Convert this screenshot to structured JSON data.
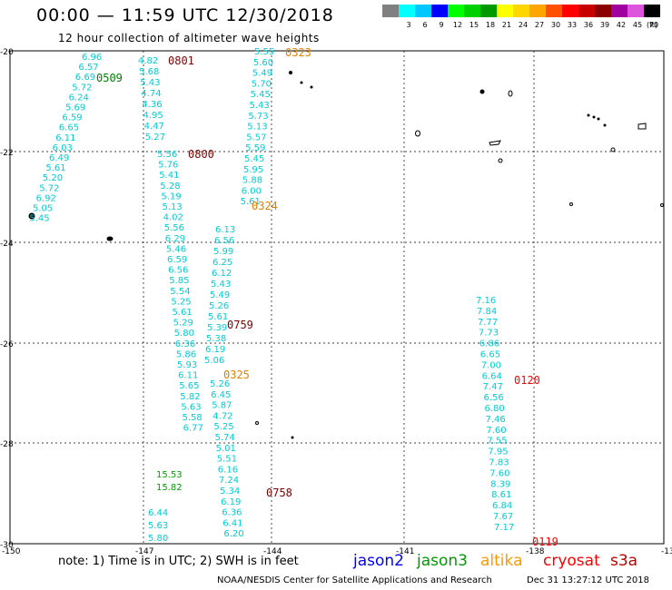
{
  "header": {
    "title": "00:00 — 11:59 UTC 12/30/2018",
    "subtitle": "12 hour collection of altimeter wave heights"
  },
  "color_scale": {
    "unit": "(ft)",
    "bins": [
      {
        "label": "",
        "color": "#808080"
      },
      {
        "label": "3",
        "color": "#00ffff"
      },
      {
        "label": "6",
        "color": "#00c8ff"
      },
      {
        "label": "9",
        "color": "#0000ff"
      },
      {
        "label": "12",
        "color": "#00ff00"
      },
      {
        "label": "15",
        "color": "#00d000"
      },
      {
        "label": "18",
        "color": "#009a00"
      },
      {
        "label": "21",
        "color": "#ffff00"
      },
      {
        "label": "24",
        "color": "#ffd700"
      },
      {
        "label": "27",
        "color": "#ffa500"
      },
      {
        "label": "30",
        "color": "#ff5000"
      },
      {
        "label": "33",
        "color": "#ff0000"
      },
      {
        "label": "36",
        "color": "#c80000"
      },
      {
        "label": "39",
        "color": "#8b0000"
      },
      {
        "label": "42",
        "color": "#a000a0"
      },
      {
        "label": "45",
        "color": "#dd55dd"
      },
      {
        "label": "70",
        "color": "#000000"
      }
    ]
  },
  "map": {
    "lat_labels": [
      "-20",
      "-22",
      "-24",
      "-26",
      "-28",
      "-30"
    ],
    "lon_labels": [
      "-150",
      "-147",
      "-144",
      "-141",
      "-138",
      "-13"
    ],
    "tracks": [
      {
        "name": "track-0509",
        "color": "#00cdd8",
        "label": "0509",
        "label_color": "#008000",
        "values": [
          "6.96",
          "6.57",
          "6.69",
          "5.72",
          "6.24",
          "5.69",
          "6.59",
          "6.65",
          "6.11",
          "6.03",
          "6.49",
          "5.61",
          "5.20",
          "5.72",
          "6.92",
          "5.05",
          "5.45"
        ]
      },
      {
        "name": "track-0801",
        "color": "#00cdd8",
        "label": "0801",
        "label_color": "#800000",
        "values": [
          "4.82",
          "5.68",
          "5.43",
          "4.74",
          "4.36",
          "4.95",
          "4.47",
          "5.27"
        ]
      },
      {
        "name": "track-0800",
        "color": "#00cdd8",
        "label": "0800",
        "label_color": "#800000",
        "values": [
          "5.56",
          "5.76",
          "5.41",
          "5.28",
          "5.19",
          "5.13",
          "4.02",
          "5.56",
          "6.29",
          "5.46",
          "6.59",
          "6.56",
          "5.85",
          "5.54",
          "5.25",
          "5.61",
          "5.29",
          "5.80",
          "6.36",
          "5.86",
          "5.93",
          "6.11",
          "5.65",
          "5.82",
          "5.63",
          "5.58",
          "6.77"
        ]
      },
      {
        "name": "track-0759",
        "color": "#00cdd8",
        "label": "0759",
        "label_color": "#800000",
        "values": [
          "6.13",
          "6.56",
          "5.99",
          "6.25",
          "6.12",
          "5.43",
          "5.49",
          "5.26",
          "5.61",
          "5.39",
          "5.38",
          "6.19",
          "5.06"
        ]
      },
      {
        "name": "track-0323",
        "color": "#00cdd8",
        "label": "0323",
        "label_color": "#e08000",
        "values": [
          "5.55",
          "5.60",
          "5.49",
          "5.70",
          "5.45",
          "5.43",
          "5.73",
          "5.13",
          "5.57",
          "5.59",
          "5.45",
          "5.95",
          "5.88",
          "6.00",
          "5.61"
        ]
      },
      {
        "name": "track-0324",
        "color": "#00cdd8",
        "label": "0324",
        "label_color": "#e08000",
        "values": []
      },
      {
        "name": "track-0325",
        "color": "#00cdd8",
        "label": "0325",
        "label_color": "#e08000",
        "values": []
      },
      {
        "name": "track-0758",
        "color": "#00cdd8",
        "label": "0758",
        "label_color": "#800000",
        "values": [
          "5.26",
          "6.45",
          "5.87",
          "4.72",
          "5.25",
          "5.74",
          "5.01",
          "5.51",
          "6.16",
          "7.24",
          "5.34",
          "6.19",
          "6.36",
          "6.41",
          "6.20"
        ]
      },
      {
        "name": "track-jason3-lower",
        "color": "#00a000",
        "label": "",
        "label_color": "#008000",
        "values": [
          "15.53",
          "15.82"
        ]
      },
      {
        "name": "track-lower-left",
        "color": "#00cdd8",
        "label": "",
        "label_color": "#000000",
        "values": [
          "6.44",
          "5.63",
          "5.80"
        ]
      },
      {
        "name": "track-0120",
        "color": "#00cdd8",
        "label": "0120",
        "label_color": "#ff0000",
        "values": [
          "7.16",
          "7.84",
          "7.77",
          "7.73",
          "6.86",
          "6.65",
          "7.00",
          "6.64",
          "7.47",
          "6.56",
          "6.80",
          "7.46",
          "7.60",
          "7.55",
          "7.95",
          "7.83",
          "7.60",
          "8.39",
          "8.61",
          "6.84",
          "7.67",
          "7.17"
        ]
      },
      {
        "name": "track-0119",
        "color": "#00cdd8",
        "label": "0119",
        "label_color": "#ff0000",
        "values": []
      }
    ]
  },
  "note": "note: 1) Time is in UTC; 2) SWH is in feet",
  "legend_satellites": [
    {
      "name": "jason2",
      "color": "#0000ff"
    },
    {
      "name": "jason3",
      "color": "#009a00"
    },
    {
      "name": "altika",
      "color": "#ff9a00"
    },
    {
      "name": "cryosat",
      "color": "#ff0000"
    },
    {
      "name": "s3a",
      "color": "#c00000"
    }
  ],
  "footer": {
    "credit": "NOAA/NESDIS Center for Satellite Applications and Research",
    "timestamp": "Dec 31 13:27:12 UTC 2018"
  }
}
